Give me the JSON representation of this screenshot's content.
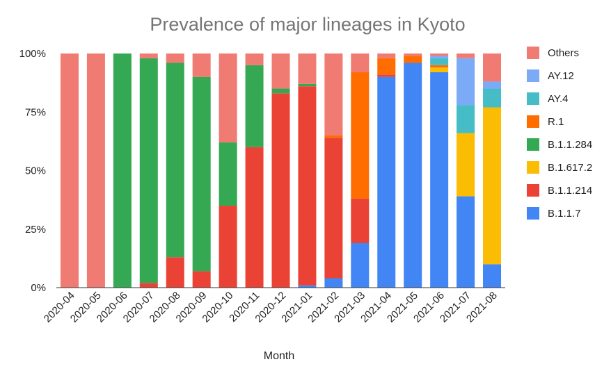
{
  "chart_data": {
    "type": "bar",
    "stacked": true,
    "percent_stacked": true,
    "title": "Prevalence of major lineages in Kyoto",
    "xlabel": "Month",
    "ylabel": "",
    "ylim": [
      0,
      100
    ],
    "y_ticks": [
      "0%",
      "25%",
      "50%",
      "75%",
      "100%"
    ],
    "grid": false,
    "legend_position": "right",
    "categories": [
      "2020-04",
      "2020-05",
      "2020-06",
      "2020-07",
      "2020-08",
      "2020-09",
      "2020-10",
      "2020-11",
      "2020-12",
      "2021-01",
      "2021-02",
      "2021-03",
      "2021-04",
      "2021-05",
      "2021-06",
      "2021-07",
      "2021-08"
    ],
    "series": [
      {
        "name": "B.1.1.7",
        "color": "#4285f4",
        "values": [
          0,
          0,
          0,
          0,
          0,
          0,
          0,
          0,
          0,
          1,
          4,
          19,
          90,
          96,
          92,
          39,
          10
        ]
      },
      {
        "name": "B.1.1.214",
        "color": "#ea4335",
        "values": [
          0,
          0,
          0,
          2,
          13,
          7,
          35,
          60,
          83,
          85,
          60,
          19,
          1,
          0,
          0,
          0,
          0
        ]
      },
      {
        "name": "B.1.617.2",
        "color": "#fbbc04",
        "values": [
          0,
          0,
          0,
          0,
          0,
          0,
          0,
          0,
          0,
          0,
          0,
          0,
          0,
          0,
          2,
          27,
          67
        ]
      },
      {
        "name": "B.1.1.284",
        "color": "#34a853",
        "values": [
          0,
          0,
          100,
          96,
          83,
          83,
          27,
          35,
          2,
          1,
          0,
          0,
          0,
          0,
          0,
          0,
          0
        ]
      },
      {
        "name": "R.1",
        "color": "#ff6d01",
        "values": [
          0,
          0,
          0,
          0,
          0,
          0,
          0,
          0,
          0,
          0,
          1,
          54,
          7,
          3,
          1,
          0,
          0
        ]
      },
      {
        "name": "AY.4",
        "color": "#46bdc6",
        "values": [
          0,
          0,
          0,
          0,
          0,
          0,
          0,
          0,
          0,
          0,
          0,
          0,
          0,
          0,
          3,
          12,
          8
        ]
      },
      {
        "name": "AY.12",
        "color": "#7baaf7",
        "values": [
          0,
          0,
          0,
          0,
          0,
          0,
          0,
          0,
          0,
          0,
          0,
          0,
          0,
          0,
          1,
          20,
          3
        ]
      },
      {
        "name": "Others",
        "color": "#f07b72",
        "values": [
          100,
          100,
          0,
          2,
          4,
          10,
          38,
          5,
          15,
          13,
          35,
          8,
          2,
          1,
          1,
          2,
          12
        ]
      }
    ]
  }
}
